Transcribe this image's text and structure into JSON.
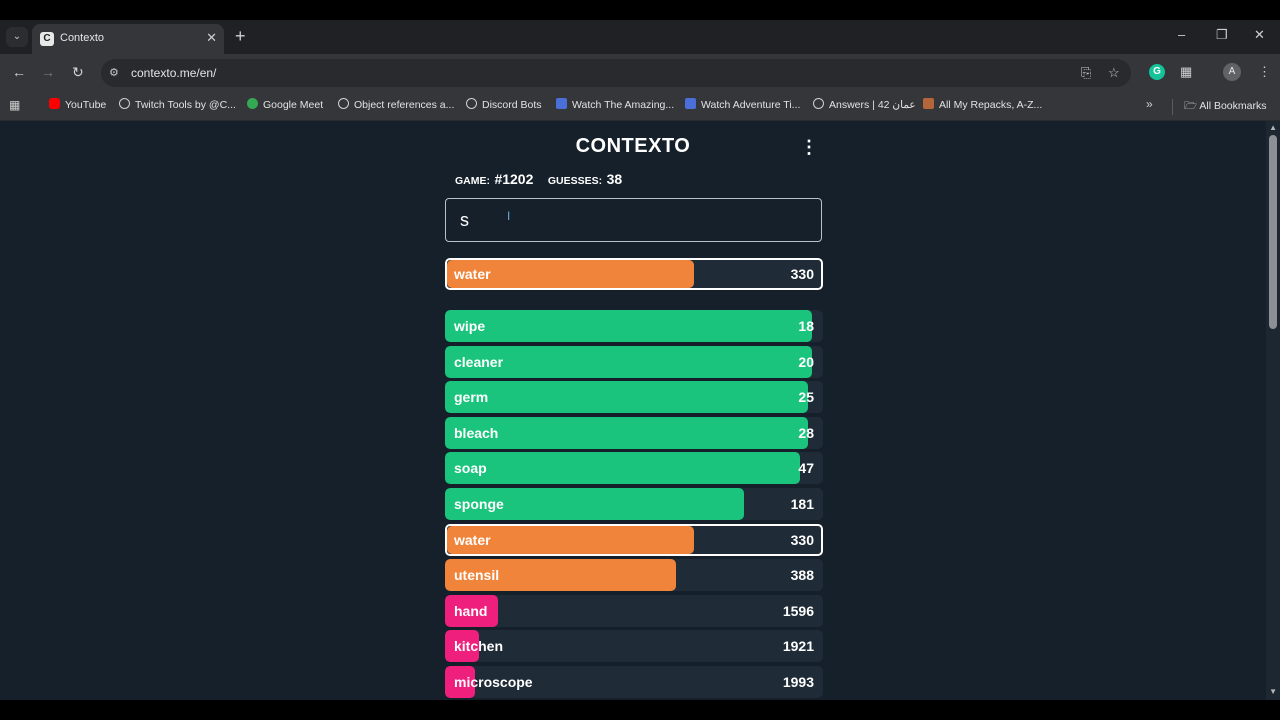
{
  "browser": {
    "tab_title": "Contexto",
    "tab_favicon": "C",
    "url": "contexto.me/en/",
    "bookmarks": [
      {
        "label": "YouTube",
        "icon_color": "#ff0000"
      },
      {
        "label": "Twitch Tools by @C...",
        "icon_color": "#d0d0d0"
      },
      {
        "label": "Google Meet",
        "icon_color": "#34a853"
      },
      {
        "label": "Object references a...",
        "icon_color": "#d0d0d0"
      },
      {
        "label": "Discord Bots",
        "icon_color": "#d0d0d0"
      },
      {
        "label": "Watch The Amazing...",
        "icon_color": "#4a6fd8"
      },
      {
        "label": "Watch Adventure Ti...",
        "icon_color": "#4a6fd8"
      },
      {
        "label": "Answers | عمان 42",
        "icon_color": "#d0d0d0"
      },
      {
        "label": "All My Repacks, A-Z...",
        "icon_color": "#b5653a"
      }
    ],
    "all_bookmarks_label": "All Bookmarks",
    "avatar_letter": "A",
    "grammarly_letter": "G"
  },
  "game": {
    "title": "CONTEXTO",
    "game_label": "GAME:",
    "game_number": "#1202",
    "guesses_label": "GUESSES:",
    "guesses_count": "38",
    "input_value": "s"
  },
  "last_guess": {
    "word": "water",
    "rank": 330,
    "color": "#f0843a",
    "fill": 0.66
  },
  "guesses": [
    {
      "word": "wipe",
      "rank": 18,
      "color": "#1bc47d",
      "fill": 0.97
    },
    {
      "word": "cleaner",
      "rank": 20,
      "color": "#1bc47d",
      "fill": 0.97
    },
    {
      "word": "germ",
      "rank": 25,
      "color": "#1bc47d",
      "fill": 0.96
    },
    {
      "word": "bleach",
      "rank": 28,
      "color": "#1bc47d",
      "fill": 0.96
    },
    {
      "word": "soap",
      "rank": 47,
      "color": "#1bc47d",
      "fill": 0.94
    },
    {
      "word": "sponge",
      "rank": 181,
      "color": "#1bc47d",
      "fill": 0.79
    },
    {
      "word": "water",
      "rank": 330,
      "color": "#f0843a",
      "fill": 0.66,
      "highlight": true
    },
    {
      "word": "utensil",
      "rank": 388,
      "color": "#f0843a",
      "fill": 0.61
    },
    {
      "word": "hand",
      "rank": 1596,
      "color": "#ef1f7e",
      "fill": 0.14
    },
    {
      "word": "kitchen",
      "rank": 1921,
      "color": "#ef1f7e",
      "fill": 0.09
    },
    {
      "word": "microscope",
      "rank": 1993,
      "color": "#ef1f7e",
      "fill": 0.08
    }
  ],
  "icons": {
    "tab_list": "chevron-down-icon",
    "new_tab": "plus-icon",
    "back": "arrow-left-icon",
    "forward": "arrow-right-icon",
    "reload": "reload-icon",
    "menu": "kebab-menu-icon"
  }
}
